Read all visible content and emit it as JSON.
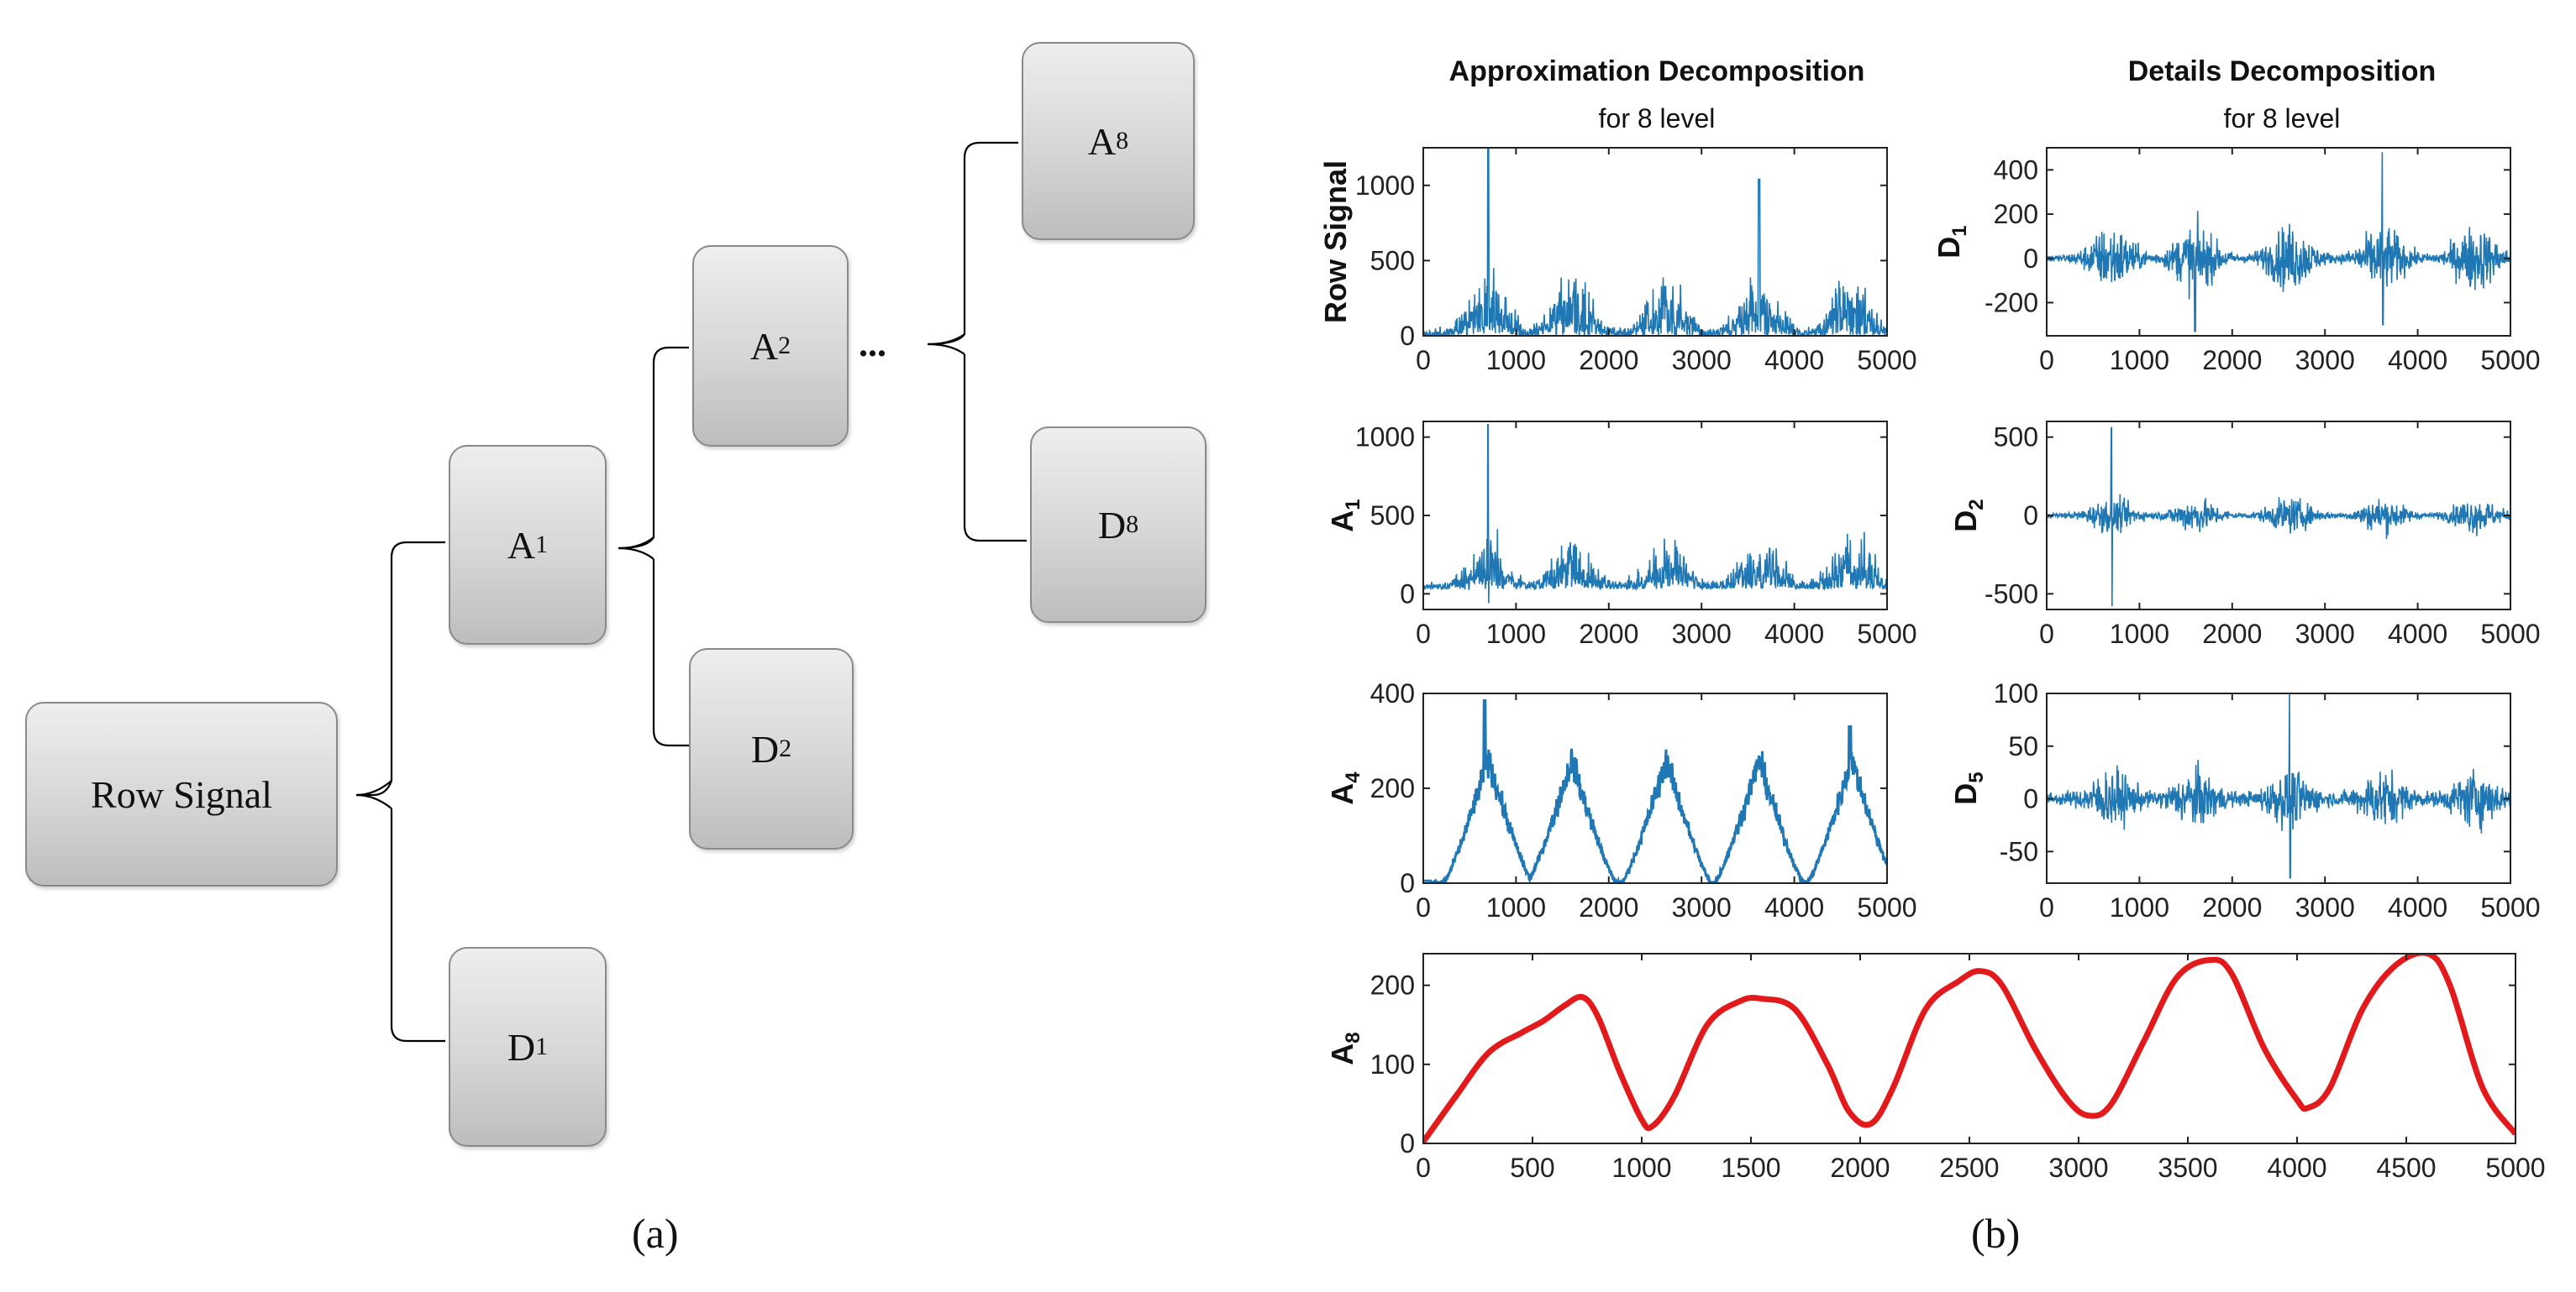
{
  "diagram": {
    "nodes": {
      "row_signal": {
        "label": "Row Signal"
      },
      "a1": {
        "base": "A",
        "sub": "1"
      },
      "d1": {
        "base": "D",
        "sub": "1"
      },
      "a2": {
        "base": "A",
        "sub": "2"
      },
      "d2": {
        "base": "D",
        "sub": "2"
      },
      "a8": {
        "base": "A",
        "sub": "8"
      },
      "d8": {
        "base": "D",
        "sub": "8"
      }
    },
    "ellipsis": "...",
    "caption": "(a)"
  },
  "plots_panel": {
    "caption": "(b)",
    "approx_title": "Approximation Decomposition",
    "approx_subtitle": "for 8 level",
    "details_title": "Details Decomposition",
    "details_subtitle": "for 8 level"
  },
  "colors": {
    "signal": "#1f77b4",
    "a8": "#e31a1c"
  },
  "chart_data": [
    {
      "type": "line",
      "id": "row_signal",
      "ylabel": "Row Signal",
      "xlim": [
        0,
        5000
      ],
      "ylim": [
        0,
        1250
      ],
      "xticks": [
        "0",
        "1000",
        "2000",
        "3000",
        "4000",
        "5000"
      ],
      "yticks": [
        "0",
        "500",
        "1000"
      ],
      "description_of_series": "noisy non-negative signal, envelopes peaking near x=700,1600,2600,3600,4600; spikes ~1250 at 700 and ~1050 at 3600"
    },
    {
      "type": "line",
      "id": "d1",
      "ylabel": "D1",
      "ylabel_base": "D",
      "ylabel_sub": "1",
      "xlim": [
        0,
        5000
      ],
      "ylim": [
        -350,
        500
      ],
      "xticks": [
        "0",
        "1000",
        "2000",
        "3000",
        "4000",
        "5000"
      ],
      "yticks": [
        "-200",
        "0",
        "200",
        "400"
      ]
    },
    {
      "type": "line",
      "id": "a1",
      "ylabel": "A1",
      "ylabel_base": "A",
      "ylabel_sub": "1",
      "xlim": [
        0,
        5000
      ],
      "ylim": [
        -100,
        1100
      ],
      "xticks": [
        "0",
        "1000",
        "2000",
        "3000",
        "4000",
        "5000"
      ],
      "yticks": [
        "0",
        "500",
        "1000"
      ]
    },
    {
      "type": "line",
      "id": "d2",
      "ylabel": "D2",
      "ylabel_base": "D",
      "ylabel_sub": "2",
      "xlim": [
        0,
        5000
      ],
      "ylim": [
        -600,
        600
      ],
      "xticks": [
        "0",
        "1000",
        "2000",
        "3000",
        "4000",
        "5000"
      ],
      "yticks": [
        "-500",
        "0",
        "500"
      ]
    },
    {
      "type": "line",
      "id": "a4",
      "ylabel": "A4",
      "ylabel_base": "A",
      "ylabel_sub": "4",
      "xlim": [
        0,
        5000
      ],
      "ylim": [
        0,
        400
      ],
      "xticks": [
        "0",
        "1000",
        "2000",
        "3000",
        "4000",
        "5000"
      ],
      "yticks": [
        "0",
        "200",
        "400"
      ]
    },
    {
      "type": "line",
      "id": "d5",
      "ylabel": "D5",
      "ylabel_base": "D",
      "ylabel_sub": "5",
      "xlim": [
        0,
        5000
      ],
      "ylim": [
        -80,
        100
      ],
      "xticks": [
        "0",
        "1000",
        "2000",
        "3000",
        "4000",
        "5000"
      ],
      "yticks": [
        "-50",
        "0",
        "50",
        "100"
      ]
    },
    {
      "type": "line",
      "id": "a8",
      "ylabel": "A8",
      "ylabel_base": "A",
      "ylabel_sub": "8",
      "xlim": [
        0,
        5000
      ],
      "ylim": [
        0,
        240
      ],
      "xticks": [
        "0",
        "500",
        "1000",
        "1500",
        "2000",
        "2500",
        "3000",
        "3500",
        "4000",
        "4500",
        "5000"
      ],
      "yticks": [
        "0",
        "100",
        "200"
      ],
      "x": [
        0,
        150,
        300,
        450,
        550,
        650,
        730,
        800,
        900,
        1000,
        1050,
        1150,
        1300,
        1450,
        1550,
        1700,
        1850,
        1950,
        2050,
        2150,
        2300,
        2450,
        2550,
        2650,
        2800,
        2950,
        3050,
        3150,
        3300,
        3450,
        3600,
        3700,
        3850,
        4000,
        4050,
        4150,
        4300,
        4450,
        4600,
        4700,
        4850,
        5000
      ],
      "y": [
        2,
        60,
        115,
        140,
        155,
        175,
        185,
        160,
        90,
        30,
        22,
        60,
        150,
        180,
        183,
        170,
        100,
        40,
        25,
        70,
        170,
        205,
        218,
        200,
        120,
        55,
        35,
        50,
        130,
        210,
        232,
        215,
        120,
        55,
        45,
        70,
        170,
        225,
        240,
        200,
        70,
        12
      ]
    }
  ]
}
